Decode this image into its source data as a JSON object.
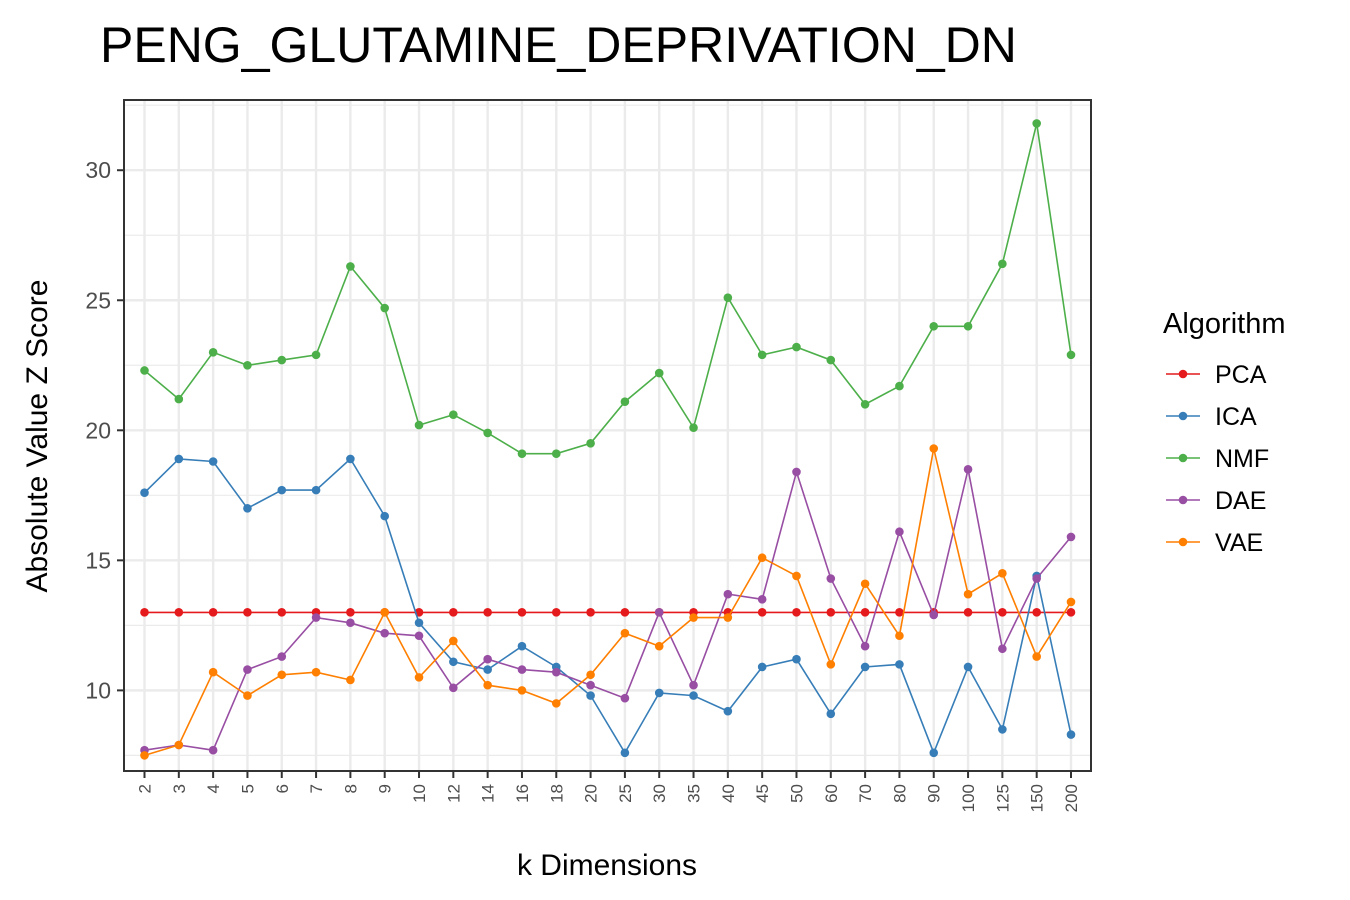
{
  "chart_data": {
    "type": "line",
    "title": "PENG_GLUTAMINE_DEPRIVATION_DN",
    "xlabel": "k Dimensions",
    "ylabel": "Absolute Value Z Score",
    "categories": [
      "2",
      "3",
      "4",
      "5",
      "6",
      "7",
      "8",
      "9",
      "10",
      "12",
      "14",
      "16",
      "18",
      "20",
      "25",
      "30",
      "35",
      "40",
      "45",
      "50",
      "60",
      "70",
      "80",
      "90",
      "100",
      "125",
      "150",
      "200"
    ],
    "yticks": [
      10,
      15,
      20,
      25,
      30
    ],
    "ylim": [
      6.9,
      32.7
    ],
    "grid": true,
    "legend": {
      "title": "Algorithm",
      "placement": "right"
    },
    "series": [
      {
        "name": "PCA",
        "color": "#e41a1c",
        "values": [
          13.0,
          13.0,
          13.0,
          13.0,
          13.0,
          13.0,
          13.0,
          13.0,
          13.0,
          13.0,
          13.0,
          13.0,
          13.0,
          13.0,
          13.0,
          13.0,
          13.0,
          13.0,
          13.0,
          13.0,
          13.0,
          13.0,
          13.0,
          13.0,
          13.0,
          13.0,
          13.0,
          13.0
        ]
      },
      {
        "name": "ICA",
        "color": "#377eb8",
        "values": [
          17.6,
          18.9,
          18.8,
          17.0,
          17.7,
          17.7,
          18.9,
          16.7,
          12.6,
          11.1,
          10.8,
          11.7,
          10.9,
          9.8,
          7.6,
          9.9,
          9.8,
          9.2,
          10.9,
          11.2,
          9.1,
          10.9,
          11.0,
          7.6,
          10.9,
          8.5,
          14.4,
          8.3
        ]
      },
      {
        "name": "NMF",
        "color": "#4daf4a",
        "values": [
          22.3,
          21.2,
          23.0,
          22.5,
          22.7,
          22.9,
          26.3,
          24.7,
          20.2,
          20.6,
          19.9,
          19.1,
          19.1,
          19.5,
          21.1,
          22.2,
          20.1,
          25.1,
          22.9,
          23.2,
          22.7,
          21.0,
          21.7,
          24.0,
          24.0,
          26.4,
          31.8,
          22.9
        ]
      },
      {
        "name": "DAE",
        "color": "#984ea3",
        "values": [
          7.7,
          7.9,
          7.7,
          10.8,
          11.3,
          12.8,
          12.6,
          12.2,
          12.1,
          10.1,
          11.2,
          10.8,
          10.7,
          10.2,
          9.7,
          13.0,
          10.2,
          13.7,
          13.5,
          18.4,
          14.3,
          11.7,
          16.1,
          12.9,
          18.5,
          11.6,
          14.3,
          15.9
        ]
      },
      {
        "name": "VAE",
        "color": "#ff7f00",
        "values": [
          7.5,
          7.9,
          10.7,
          9.8,
          10.6,
          10.7,
          10.4,
          13.0,
          10.5,
          11.9,
          10.2,
          10.0,
          9.5,
          10.6,
          12.2,
          11.7,
          12.8,
          12.8,
          15.1,
          14.4,
          11.0,
          14.1,
          12.1,
          19.3,
          13.7,
          14.5,
          11.3,
          13.4
        ]
      }
    ]
  }
}
